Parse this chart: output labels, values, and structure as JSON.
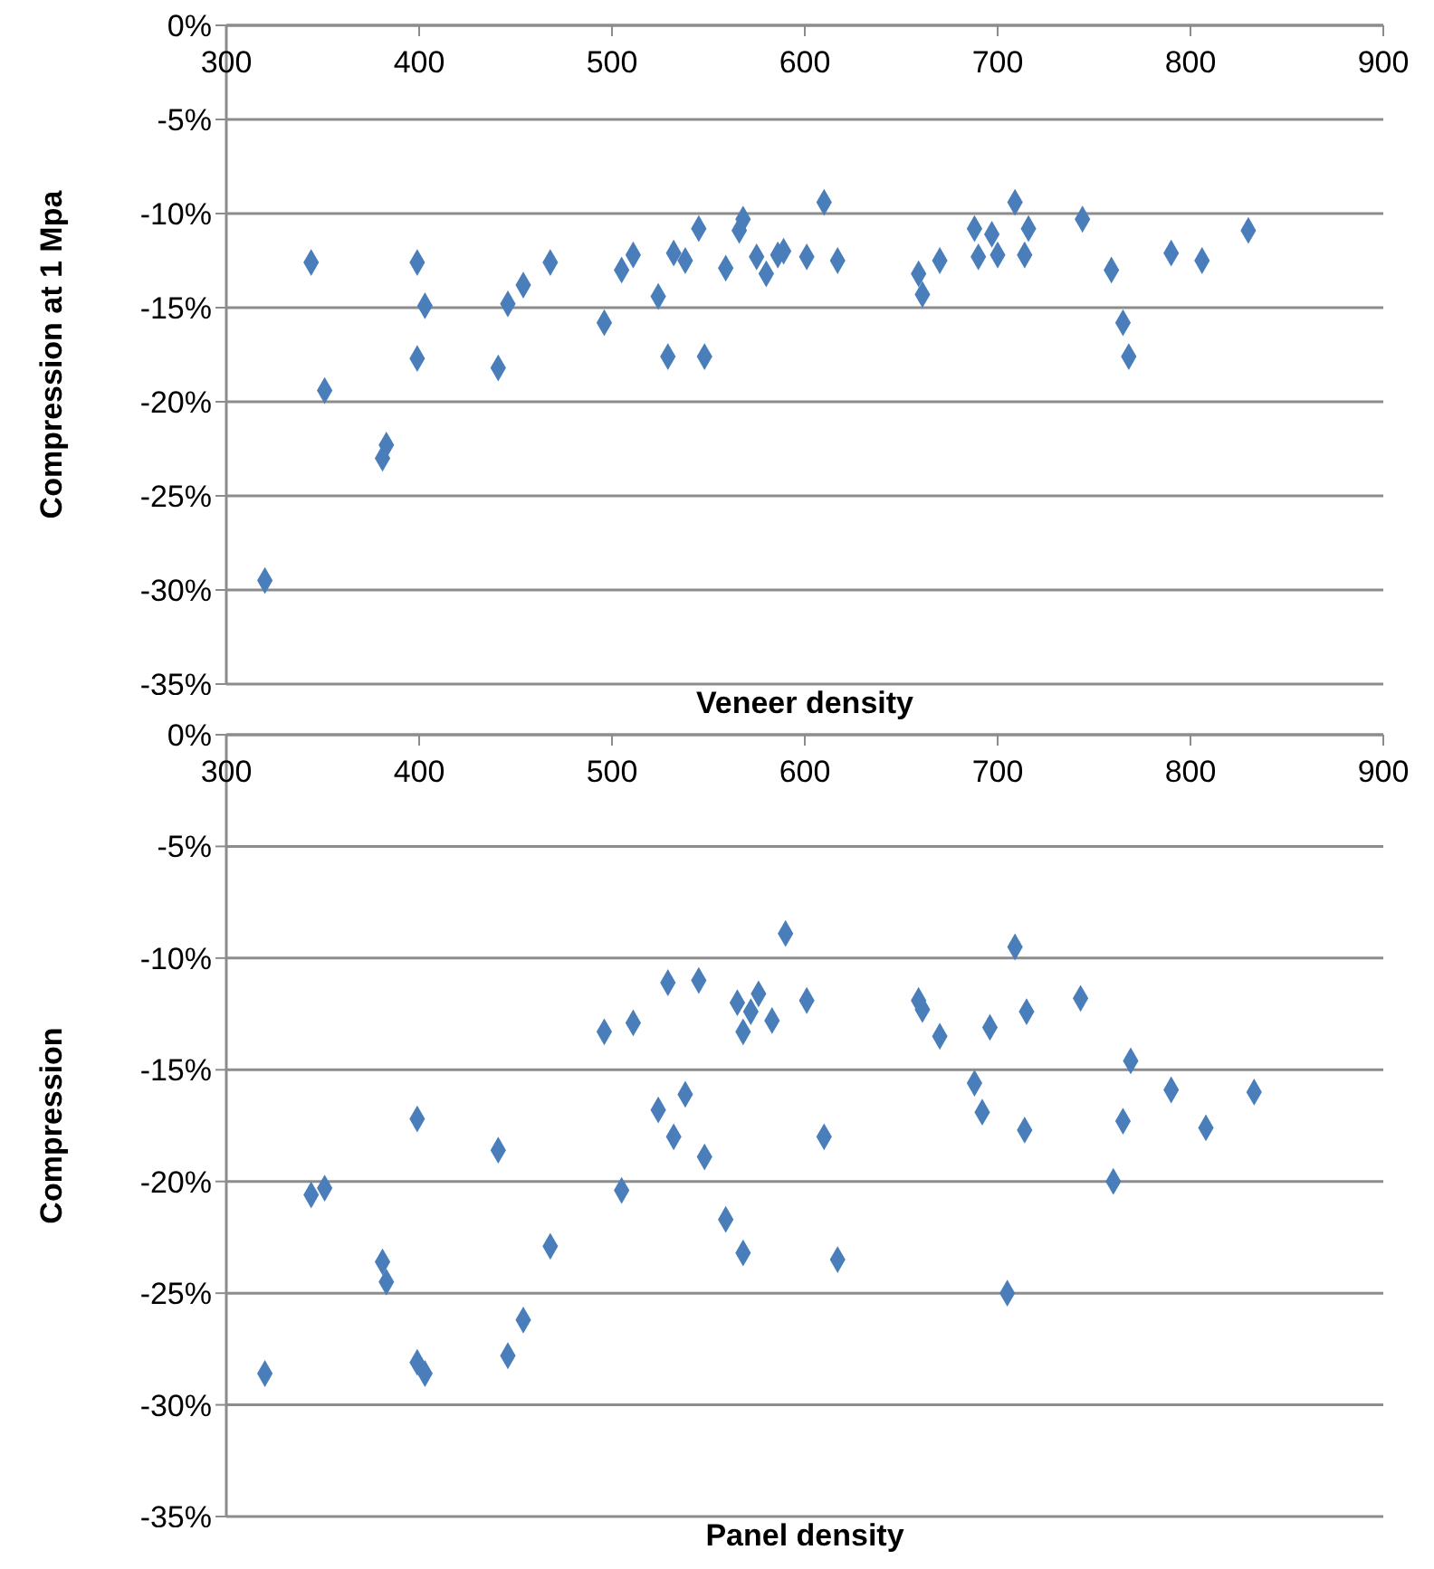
{
  "chart_data": [
    {
      "type": "scatter",
      "xlabel": "Veneer density",
      "ylabel": "Compression at 1 Mpa",
      "color": "#4a7ebb",
      "marker": "diamond",
      "grid": "y",
      "xlim": [
        300,
        900
      ],
      "xticks": [
        300,
        400,
        500,
        600,
        700,
        800,
        900
      ],
      "ylim": [
        -35,
        0
      ],
      "yticks": [
        {
          "value": -35,
          "label": "-35%"
        },
        {
          "value": -30,
          "label": "-30%"
        },
        {
          "value": -25,
          "label": "-25%"
        },
        {
          "value": -20,
          "label": "-20%"
        },
        {
          "value": -15,
          "label": "-15%"
        },
        {
          "value": -10,
          "label": "-10%"
        },
        {
          "value": -5,
          "label": "-5%"
        },
        {
          "value": 0,
          "label": "0%"
        }
      ],
      "x": [
        320,
        344,
        351,
        381,
        383,
        399,
        399,
        403,
        441,
        446,
        454,
        468,
        496,
        505,
        511,
        524,
        529,
        532,
        538,
        545,
        548,
        559,
        566,
        568,
        575,
        580,
        586,
        589,
        601,
        610,
        617,
        659,
        661,
        670,
        688,
        690,
        697,
        700,
        709,
        714,
        716,
        744,
        759,
        765,
        768,
        790,
        806,
        830
      ],
      "values": [
        -29.5,
        -12.6,
        -19.4,
        -23,
        -22.3,
        -12.6,
        -17.7,
        -14.9,
        -18.2,
        -14.8,
        -13.8,
        -12.6,
        -15.8,
        -13,
        -12.2,
        -14.4,
        -17.6,
        -12.1,
        -12.5,
        -10.8,
        -17.6,
        -12.9,
        -10.9,
        -10.3,
        -12.3,
        -13.2,
        -12.2,
        -12,
        -12.3,
        -9.4,
        -12.5,
        -13.2,
        -14.3,
        -12.5,
        -10.8,
        -12.3,
        -11.1,
        -12.2,
        -9.4,
        -12.2,
        -10.8,
        -10.3,
        -13,
        -15.8,
        -17.6,
        -12.1,
        -12.5,
        -10.9
      ]
    },
    {
      "type": "scatter",
      "xlabel": "Panel density",
      "ylabel": "Compression",
      "color": "#4a7ebb",
      "marker": "diamond",
      "grid": "y",
      "xlim": [
        300,
        900
      ],
      "xticks": [
        300,
        400,
        500,
        600,
        700,
        800,
        900
      ],
      "ylim": [
        -35,
        0
      ],
      "yticks": [
        {
          "value": -35,
          "label": "-35%"
        },
        {
          "value": -30,
          "label": "-30%"
        },
        {
          "value": -25,
          "label": "-25%"
        },
        {
          "value": -20,
          "label": "-20%"
        },
        {
          "value": -15,
          "label": "-15%"
        },
        {
          "value": -10,
          "label": "-10%"
        },
        {
          "value": -5,
          "label": "-5%"
        },
        {
          "value": 0,
          "label": "0%"
        }
      ],
      "x": [
        320,
        344,
        351,
        381,
        383,
        399,
        399,
        403,
        441,
        446,
        454,
        468,
        496,
        505,
        511,
        524,
        529,
        532,
        538,
        545,
        548,
        559,
        565,
        568,
        568,
        572,
        576,
        583,
        590,
        601,
        610,
        617,
        659,
        661,
        670,
        688,
        692,
        696,
        705,
        709,
        714,
        715,
        743,
        760,
        765,
        769,
        790,
        808,
        833
      ],
      "values": [
        -28.6,
        -20.6,
        -20.3,
        -23.6,
        -24.5,
        -28.1,
        -17.2,
        -28.6,
        -18.6,
        -27.8,
        -26.2,
        -22.9,
        -13.3,
        -20.4,
        -12.9,
        -16.8,
        -11.1,
        -18,
        -16.1,
        -11,
        -18.9,
        -21.7,
        -12,
        -13.3,
        -23.2,
        -12.4,
        -11.6,
        -12.8,
        -8.9,
        -11.9,
        -18,
        -23.5,
        -11.9,
        -12.3,
        -13.5,
        -15.6,
        -16.9,
        -13.1,
        -25,
        -9.5,
        -17.7,
        -12.4,
        -11.8,
        -20,
        -17.3,
        -14.6,
        -15.9,
        -17.6,
        -16
      ]
    }
  ]
}
